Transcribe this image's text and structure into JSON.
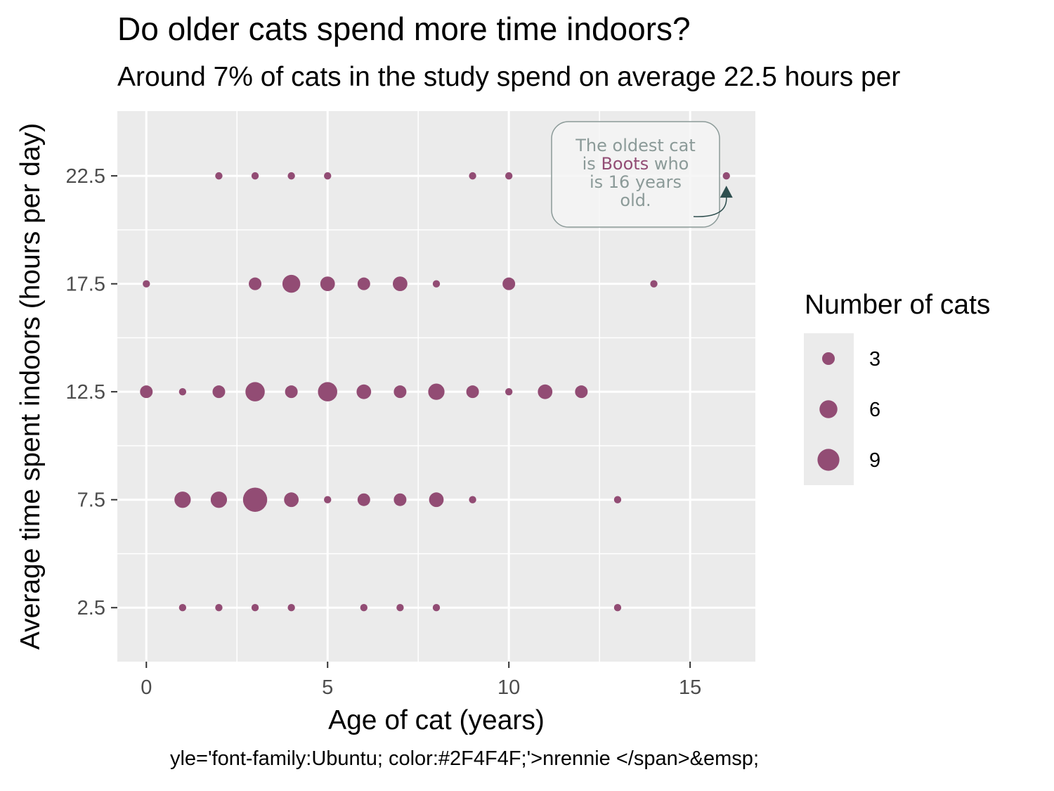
{
  "title": "Do older cats spend more time indoors?",
  "subtitle": "Around 7% of cats in the study spend on average 22.5 hours per",
  "caption": "yle='font-family:Ubuntu; color:#2F4F4F;'>nrennie </span>&emsp;",
  "colors": {
    "point": "#924C74",
    "panel": "#EBEBEB",
    "grid": "#FFFFFF",
    "annotation_text": "#8B9A98",
    "annotation_border": "#8B9A98",
    "annotation_fill": "#F5F5F5",
    "arrow": "#2F4F4F"
  },
  "chart_data": {
    "type": "scatter",
    "title": "Do older cats spend more time indoors?",
    "subtitle": "Around 7% of cats in the study spend on average 22.5 hours per",
    "xlabel": "Age of cat (years)",
    "ylabel": "Average time spent indoors (hours per day)",
    "xlim": [
      -0.8,
      16.8
    ],
    "ylim": [
      0,
      25.5
    ],
    "x_ticks": [
      0,
      5,
      10,
      15
    ],
    "y_ticks": [
      2.5,
      7.5,
      12.5,
      17.5,
      22.5
    ],
    "x_tick_labels": [
      "0",
      "5",
      "10",
      "15"
    ],
    "y_tick_labels": [
      "2.5",
      "7.5",
      "12.5",
      "17.5",
      "22.5"
    ],
    "grid": true,
    "size_legend": {
      "title": "Number of cats",
      "position": "right",
      "breaks": [
        3,
        6,
        9
      ],
      "labels": [
        "3",
        "6",
        "9"
      ]
    },
    "points": [
      {
        "x": 2,
        "y": 22.5,
        "n": 1
      },
      {
        "x": 3,
        "y": 22.5,
        "n": 1
      },
      {
        "x": 4,
        "y": 22.5,
        "n": 1
      },
      {
        "x": 5,
        "y": 22.5,
        "n": 1
      },
      {
        "x": 9,
        "y": 22.5,
        "n": 1
      },
      {
        "x": 10,
        "y": 22.5,
        "n": 1
      },
      {
        "x": 16,
        "y": 22.5,
        "n": 1
      },
      {
        "x": 0,
        "y": 17.5,
        "n": 1
      },
      {
        "x": 3,
        "y": 17.5,
        "n": 3
      },
      {
        "x": 4,
        "y": 17.5,
        "n": 6
      },
      {
        "x": 5,
        "y": 17.5,
        "n": 4
      },
      {
        "x": 6,
        "y": 17.5,
        "n": 3
      },
      {
        "x": 7,
        "y": 17.5,
        "n": 4
      },
      {
        "x": 8,
        "y": 17.5,
        "n": 1
      },
      {
        "x": 10,
        "y": 17.5,
        "n": 3
      },
      {
        "x": 14,
        "y": 17.5,
        "n": 1
      },
      {
        "x": 0,
        "y": 12.5,
        "n": 3
      },
      {
        "x": 1,
        "y": 12.5,
        "n": 1
      },
      {
        "x": 2,
        "y": 12.5,
        "n": 3
      },
      {
        "x": 3,
        "y": 12.5,
        "n": 7
      },
      {
        "x": 4,
        "y": 12.5,
        "n": 3
      },
      {
        "x": 5,
        "y": 12.5,
        "n": 7
      },
      {
        "x": 6,
        "y": 12.5,
        "n": 4
      },
      {
        "x": 7,
        "y": 12.5,
        "n": 3
      },
      {
        "x": 8,
        "y": 12.5,
        "n": 5
      },
      {
        "x": 9,
        "y": 12.5,
        "n": 3
      },
      {
        "x": 10,
        "y": 12.5,
        "n": 1
      },
      {
        "x": 11,
        "y": 12.5,
        "n": 4
      },
      {
        "x": 12,
        "y": 12.5,
        "n": 3
      },
      {
        "x": 1,
        "y": 7.5,
        "n": 5
      },
      {
        "x": 2,
        "y": 7.5,
        "n": 5
      },
      {
        "x": 3,
        "y": 7.5,
        "n": 11
      },
      {
        "x": 4,
        "y": 7.5,
        "n": 4
      },
      {
        "x": 5,
        "y": 7.5,
        "n": 1
      },
      {
        "x": 6,
        "y": 7.5,
        "n": 3
      },
      {
        "x": 7,
        "y": 7.5,
        "n": 3
      },
      {
        "x": 8,
        "y": 7.5,
        "n": 4
      },
      {
        "x": 9,
        "y": 7.5,
        "n": 1
      },
      {
        "x": 13,
        "y": 7.5,
        "n": 1
      },
      {
        "x": 1,
        "y": 2.5,
        "n": 1
      },
      {
        "x": 2,
        "y": 2.5,
        "n": 1
      },
      {
        "x": 3,
        "y": 2.5,
        "n": 1
      },
      {
        "x": 4,
        "y": 2.5,
        "n": 1
      },
      {
        "x": 6,
        "y": 2.5,
        "n": 1
      },
      {
        "x": 7,
        "y": 2.5,
        "n": 1
      },
      {
        "x": 8,
        "y": 2.5,
        "n": 1
      },
      {
        "x": 13,
        "y": 2.5,
        "n": 1
      }
    ],
    "annotation": {
      "lines": [
        [
          {
            "text": "The oldest cat"
          }
        ],
        [
          {
            "text": "is "
          },
          {
            "text": "Boots",
            "highlight": true
          },
          {
            "text": " who"
          }
        ],
        [
          {
            "text": "is 16 years"
          }
        ],
        [
          {
            "text": "old."
          }
        ]
      ],
      "points_to": {
        "x": 16,
        "y": 22.5
      }
    }
  }
}
